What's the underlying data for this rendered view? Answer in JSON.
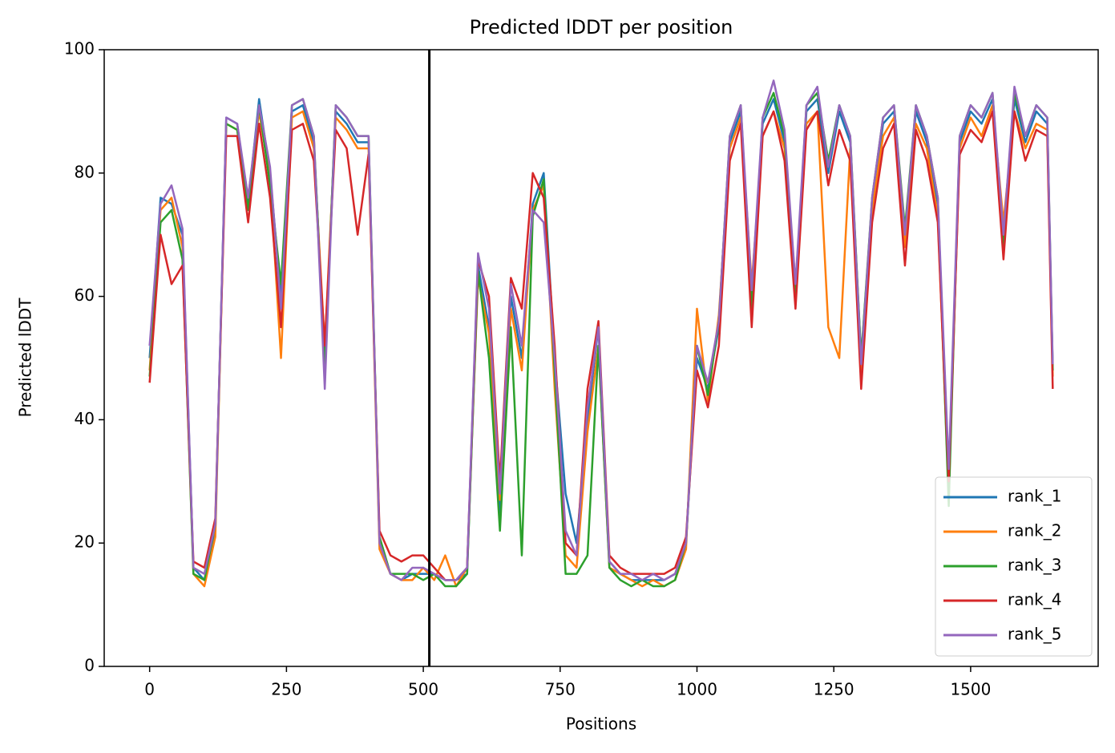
{
  "chart_data": {
    "type": "line",
    "title": "Predicted lDDT per position",
    "xlabel": "Positions",
    "ylabel": "Predicted lDDT",
    "x": [
      0,
      20,
      40,
      60,
      80,
      100,
      120,
      140,
      160,
      180,
      200,
      220,
      240,
      260,
      280,
      300,
      320,
      340,
      360,
      380,
      400,
      420,
      440,
      460,
      480,
      500,
      520,
      540,
      560,
      580,
      600,
      620,
      640,
      660,
      680,
      700,
      720,
      740,
      760,
      780,
      800,
      820,
      840,
      860,
      880,
      900,
      920,
      940,
      960,
      980,
      1000,
      1020,
      1040,
      1060,
      1080,
      1100,
      1120,
      1140,
      1160,
      1180,
      1200,
      1220,
      1240,
      1260,
      1280,
      1300,
      1320,
      1340,
      1360,
      1380,
      1400,
      1420,
      1440,
      1460,
      1480,
      1500,
      1520,
      1540,
      1560,
      1580,
      1600,
      1620,
      1640,
      1650
    ],
    "series": [
      {
        "name": "rank_1",
        "color": "#1f77b4",
        "values": [
          50,
          76,
          75,
          70,
          16,
          14,
          22,
          89,
          88,
          75,
          92,
          80,
          60,
          90,
          91,
          85,
          50,
          90,
          88,
          85,
          85,
          20,
          15,
          14,
          15,
          15,
          15,
          14,
          14,
          15,
          65,
          55,
          25,
          60,
          50,
          75,
          80,
          50,
          28,
          20,
          40,
          55,
          17,
          15,
          14,
          14,
          14,
          14,
          15,
          20,
          50,
          45,
          55,
          85,
          90,
          60,
          88,
          92,
          85,
          60,
          90,
          92,
          80,
          90,
          85,
          50,
          75,
          88,
          90,
          70,
          90,
          85,
          75,
          30,
          85,
          90,
          88,
          92,
          70,
          92,
          85,
          90,
          88,
          48
        ]
      },
      {
        "name": "rank_2",
        "color": "#ff7f0e",
        "values": [
          48,
          74,
          76,
          68,
          15,
          13,
          21,
          88,
          87,
          76,
          90,
          79,
          50,
          89,
          90,
          84,
          52,
          89,
          87,
          84,
          84,
          19,
          15,
          14,
          14,
          16,
          14,
          18,
          13,
          16,
          63,
          54,
          27,
          58,
          48,
          74,
          78,
          45,
          18,
          16,
          38,
          52,
          16,
          15,
          14,
          13,
          14,
          13,
          14,
          19,
          58,
          43,
          57,
          84,
          89,
          62,
          86,
          90,
          84,
          62,
          88,
          90,
          55,
          50,
          84,
          48,
          74,
          86,
          89,
          68,
          88,
          84,
          73,
          28,
          84,
          89,
          86,
          91,
          72,
          90,
          84,
          88,
          87,
          47
        ]
      },
      {
        "name": "rank_3",
        "color": "#2ca02c",
        "values": [
          47,
          72,
          74,
          66,
          15,
          14,
          23,
          88,
          87,
          74,
          91,
          78,
          62,
          91,
          92,
          86,
          48,
          91,
          89,
          86,
          86,
          21,
          15,
          15,
          15,
          14,
          15,
          13,
          13,
          15,
          64,
          50,
          22,
          55,
          18,
          73,
          79,
          48,
          15,
          15,
          18,
          52,
          16,
          14,
          13,
          14,
          13,
          13,
          14,
          20,
          52,
          44,
          56,
          86,
          91,
          58,
          89,
          93,
          86,
          60,
          91,
          93,
          82,
          91,
          86,
          50,
          76,
          89,
          91,
          71,
          91,
          86,
          76,
          26,
          86,
          91,
          89,
          93,
          68,
          93,
          86,
          91,
          89,
          48
        ]
      },
      {
        "name": "rank_4",
        "color": "#d62728",
        "values": [
          46,
          70,
          62,
          65,
          17,
          16,
          24,
          86,
          86,
          72,
          88,
          76,
          55,
          87,
          88,
          82,
          52,
          87,
          84,
          70,
          83,
          22,
          18,
          17,
          18,
          18,
          16,
          14,
          14,
          16,
          66,
          60,
          30,
          63,
          58,
          80,
          76,
          52,
          20,
          18,
          45,
          56,
          18,
          16,
          15,
          15,
          15,
          15,
          16,
          21,
          48,
          42,
          52,
          82,
          88,
          55,
          86,
          90,
          82,
          58,
          87,
          90,
          78,
          87,
          82,
          45,
          72,
          84,
          88,
          65,
          87,
          82,
          72,
          30,
          83,
          87,
          85,
          90,
          66,
          90,
          82,
          87,
          86,
          45
        ]
      },
      {
        "name": "rank_5",
        "color": "#9467bd",
        "values": [
          52,
          75,
          78,
          71,
          16,
          15,
          23,
          89,
          88,
          76,
          91,
          81,
          58,
          91,
          92,
          86,
          45,
          91,
          89,
          86,
          86,
          20,
          15,
          14,
          16,
          16,
          15,
          14,
          14,
          16,
          67,
          58,
          28,
          62,
          52,
          74,
          72,
          50,
          22,
          18,
          42,
          55,
          17,
          15,
          15,
          14,
          15,
          14,
          15,
          20,
          52,
          46,
          56,
          86,
          91,
          61,
          89,
          95,
          87,
          62,
          91,
          94,
          81,
          91,
          86,
          49,
          76,
          89,
          91,
          70,
          91,
          86,
          76,
          32,
          86,
          91,
          89,
          93,
          70,
          94,
          86,
          91,
          89,
          49
        ]
      }
    ],
    "xlim": [
      -83,
      1733
    ],
    "xticks": [
      0,
      250,
      500,
      750,
      1000,
      1250,
      1500
    ],
    "ylim": [
      0,
      100
    ],
    "yticks": [
      0,
      20,
      40,
      60,
      80,
      100
    ],
    "vlines": [
      511
    ],
    "vline_color": "#000000",
    "legend": "lower right",
    "grid": false
  }
}
